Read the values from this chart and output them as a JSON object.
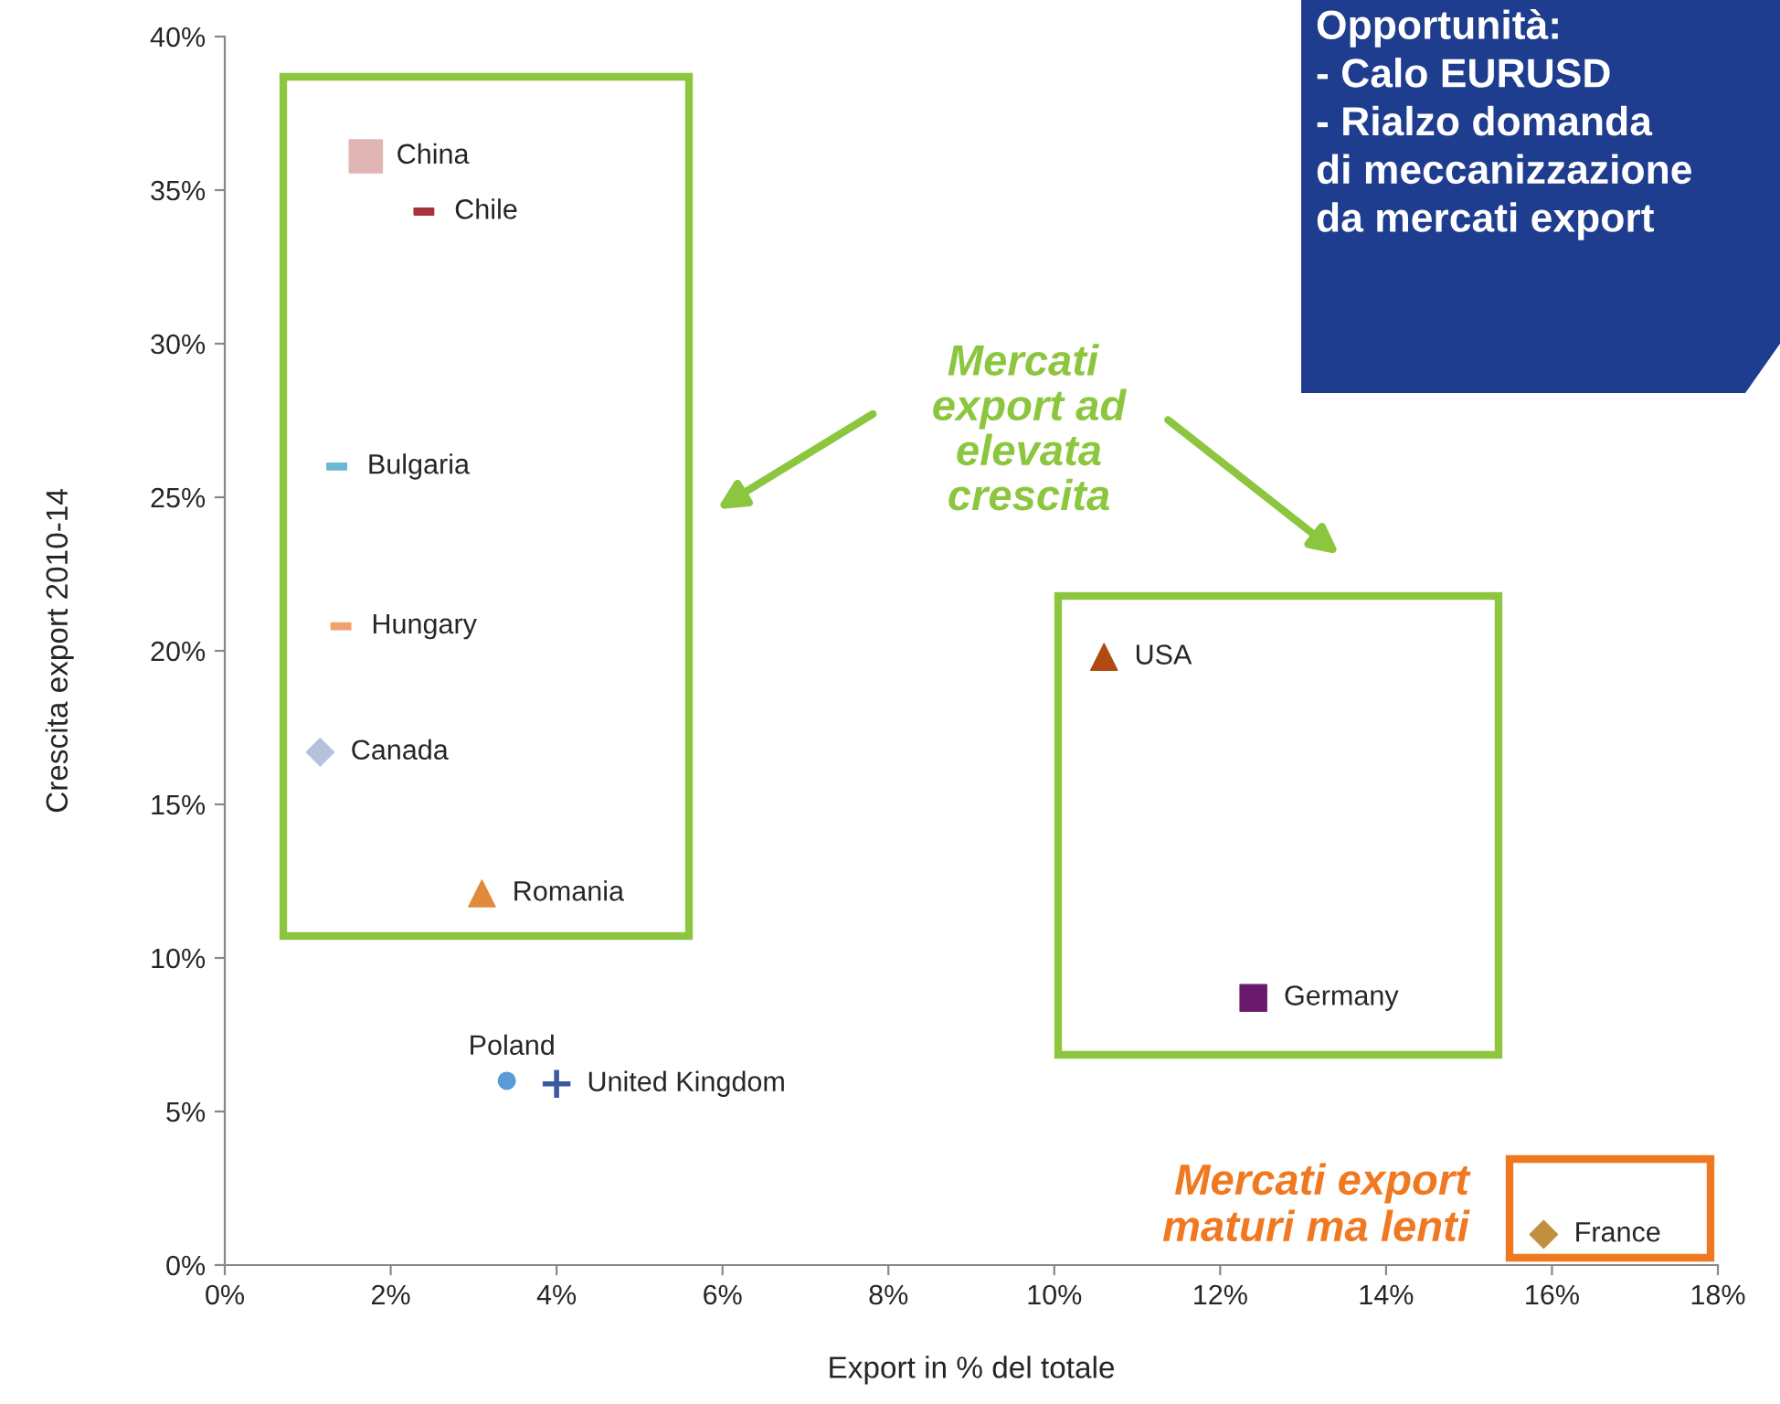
{
  "chart_data": {
    "type": "scatter",
    "xlabel": "Export in % del totale",
    "ylabel": "Crescita export 2010-14",
    "xlim": [
      0,
      18
    ],
    "ylim": [
      0,
      40
    ],
    "xticks": [
      {
        "value": 0,
        "label": "0%"
      },
      {
        "value": 2,
        "label": "2%"
      },
      {
        "value": 4,
        "label": "4%"
      },
      {
        "value": 6,
        "label": "6%"
      },
      {
        "value": 8,
        "label": "8%"
      },
      {
        "value": 10,
        "label": "10%"
      },
      {
        "value": 12,
        "label": "12%"
      },
      {
        "value": 14,
        "label": "14%"
      },
      {
        "value": 16,
        "label": "16%"
      },
      {
        "value": 18,
        "label": "18%"
      }
    ],
    "yticks": [
      {
        "value": 0,
        "label": "0%"
      },
      {
        "value": 5,
        "label": "5%"
      },
      {
        "value": 10,
        "label": "10%"
      },
      {
        "value": 15,
        "label": "15%"
      },
      {
        "value": 20,
        "label": "20%"
      },
      {
        "value": 25,
        "label": "25%"
      },
      {
        "value": 30,
        "label": "30%"
      },
      {
        "value": 35,
        "label": "35%"
      },
      {
        "value": 40,
        "label": "40%"
      }
    ],
    "grid": false,
    "legend": false,
    "series": [
      {
        "name": "China",
        "color": "#e2b5b5",
        "marker": "square",
        "x": [
          1.7
        ],
        "values": [
          36.1
        ]
      },
      {
        "name": "Chile",
        "color": "#a8323c",
        "marker": "square",
        "x": [
          2.4
        ],
        "values": [
          34.3
        ]
      },
      {
        "name": "Bulgaria",
        "color": "#6bb8d0",
        "marker": "square",
        "x": [
          1.35
        ],
        "values": [
          26.0
        ]
      },
      {
        "name": "Hungary",
        "color": "#f2a070",
        "marker": "square",
        "x": [
          1.4
        ],
        "values": [
          20.8
        ]
      },
      {
        "name": "Canada",
        "color": "#b3c3de",
        "marker": "diamond",
        "x": [
          1.15
        ],
        "values": [
          16.7
        ]
      },
      {
        "name": "Romania",
        "color": "#e08a3c",
        "marker": "triangle",
        "x": [
          3.1
        ],
        "values": [
          12.1
        ]
      },
      {
        "name": "Poland",
        "color": "#5b9bd5",
        "marker": "circle",
        "x": [
          3.4
        ],
        "values": [
          6.0
        ]
      },
      {
        "name": "United Kingdom",
        "color": "#3a5aa0",
        "marker": "cross",
        "x": [
          4.0
        ],
        "values": [
          5.9
        ]
      },
      {
        "name": "USA",
        "color": "#b04a10",
        "marker": "triangle",
        "x": [
          10.6
        ],
        "values": [
          19.8
        ]
      },
      {
        "name": "Germany",
        "color": "#6a1a6a",
        "marker": "square",
        "x": [
          12.4
        ],
        "values": [
          8.7
        ]
      },
      {
        "name": "France",
        "color": "#c09040",
        "marker": "diamond",
        "x": [
          15.9
        ],
        "values": [
          1.0
        ]
      }
    ],
    "annotations": [
      "Mercati export ad elevata crescita",
      "Mercati export maturi ma lenti",
      "Opportunità:\n- Calo EURUSD\n- Rialzo domanda\ndi meccanizzazione\nda mercati export"
    ]
  }
}
